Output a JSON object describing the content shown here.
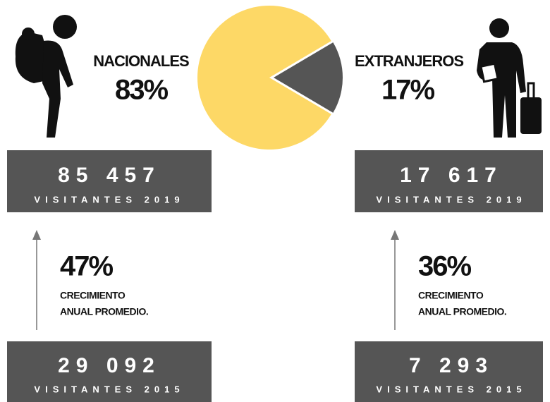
{
  "chart_data": {
    "type": "pie",
    "categories": [
      "NACIONALES",
      "EXTRANJEROS"
    ],
    "values": [
      83,
      17
    ],
    "value_labels": [
      "83%",
      "17%"
    ],
    "colors": [
      "#fdd866",
      "#555555"
    ]
  },
  "panels": [
    {
      "visitors_2019": "85 457",
      "label_2019": "VISITANTES 2019",
      "growth": "47%",
      "growth_label": [
        "CRECIMIENTO",
        "ANUAL PROMEDIO."
      ],
      "visitors_2015": "29 092",
      "label_2015": "VISITANTES 2015"
    },
    {
      "visitors_2019": "17 617",
      "label_2019": "VISITANTES 2019",
      "growth": "36%",
      "growth_label": [
        "CRECIMIENTO",
        "ANUAL PROMEDIO."
      ],
      "visitors_2015": "7 293",
      "label_2015": "VISITANTES 2015"
    }
  ]
}
